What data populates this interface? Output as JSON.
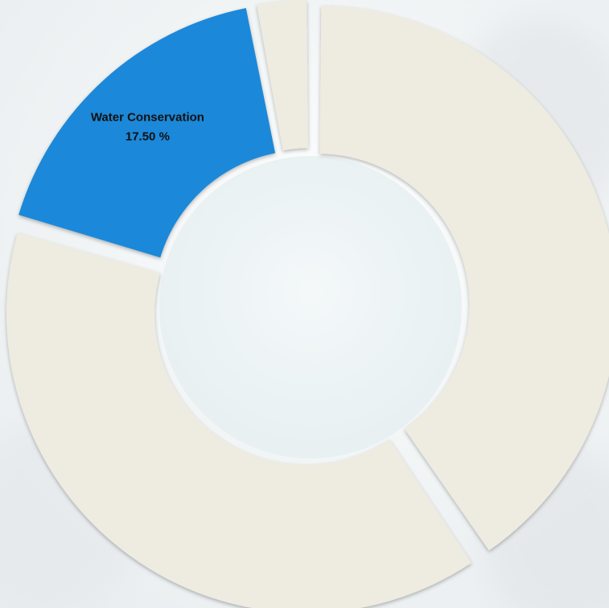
{
  "chart_data": {
    "type": "pie",
    "style": "donut",
    "slice_order": "clockwise-from-top",
    "slices": [
      {
        "value": 40.5,
        "color": "#eeebe0",
        "label": "",
        "value_label": ""
      },
      {
        "value": 39.0,
        "color": "#eeebe0",
        "label": "",
        "value_label": ""
      },
      {
        "value": 17.5,
        "color": "#1f88d9",
        "label": "Water Conservation",
        "value_label": "17.50 %"
      },
      {
        "value": 3.0,
        "color": "#eeebe0",
        "label": "",
        "value_label": ""
      }
    ]
  },
  "colors": {
    "accent": "#1f88d9",
    "muted_slice": "#eeebe0",
    "hole": "#eef4f5"
  }
}
